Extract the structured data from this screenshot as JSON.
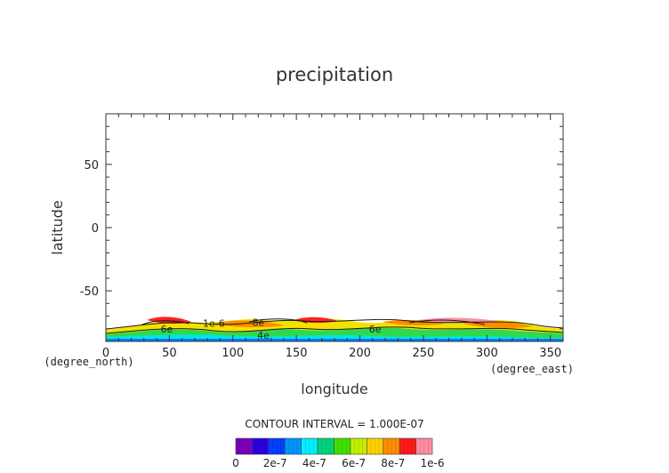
{
  "chart_data": {
    "type": "heatmap",
    "title": "precipitation",
    "xlabel": "longitude",
    "ylabel": "latitude",
    "x_unit": "(degree_east)",
    "y_unit": "(degree_north)",
    "xlim": [
      0,
      360
    ],
    "ylim": [
      -90,
      90
    ],
    "x_ticks": [
      0,
      50,
      100,
      150,
      200,
      250,
      300,
      350
    ],
    "y_ticks": [
      -50,
      0,
      50
    ],
    "contour_interval_text": "CONTOUR INTERVAL = 1.000E-07",
    "contour_labels": [
      {
        "text": "6e",
        "lon": 48,
        "lat": -80
      },
      {
        "text": "1e-6",
        "lon": 85,
        "lat": -75.5
      },
      {
        "text": "8e",
        "lon": 120,
        "lat": -75
      },
      {
        "text": "4e",
        "lon": 124,
        "lat": -85
      },
      {
        "text": "6e",
        "lon": 212,
        "lat": -80
      }
    ],
    "colorbar": {
      "colors": [
        "#7a00b8",
        "#2800e0",
        "#0040ff",
        "#0095ff",
        "#00f0ff",
        "#00d47a",
        "#40e000",
        "#c0f000",
        "#ffd000",
        "#ff8c00",
        "#ff1a1a",
        "#ff8ca0"
      ],
      "tick_labels": [
        "0",
        "2e-7",
        "4e-7",
        "6e-7",
        "8e-7",
        "1e-6"
      ]
    },
    "grid": false,
    "legend": "bottom-center colorbar"
  }
}
